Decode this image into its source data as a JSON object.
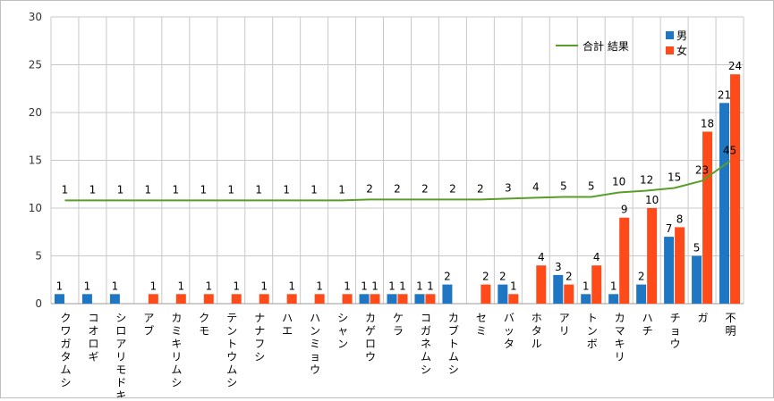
{
  "chart_data": {
    "type": "bar",
    "categories": [
      "クワガタムシ",
      "コオロギ",
      "シロアリモドキ",
      "アブ",
      "カミキリムシ",
      "クモ",
      "テントウムシ",
      "ナナフシ",
      "ハエ",
      "ハンミョウ",
      "シャン",
      "カゲロウ",
      "ケラ",
      "コガネムシ",
      "カブトムシ",
      "セミ",
      "バッタ",
      "ホタル",
      "アリ",
      "トンボ",
      "カマキリ",
      "ハチ",
      "チョウ",
      "ガ",
      "不明"
    ],
    "series": [
      {
        "name": "男",
        "type": "bar",
        "color": "#1f77c4",
        "values": [
          1,
          1,
          1,
          null,
          null,
          null,
          null,
          null,
          null,
          null,
          null,
          1,
          1,
          1,
          2,
          null,
          2,
          null,
          3,
          1,
          1,
          2,
          7,
          5,
          21
        ]
      },
      {
        "name": "女",
        "type": "bar",
        "color": "#ff4a1a",
        "values": [
          null,
          null,
          null,
          1,
          1,
          1,
          1,
          1,
          1,
          1,
          1,
          1,
          1,
          1,
          null,
          2,
          1,
          4,
          2,
          4,
          9,
          10,
          8,
          18,
          24
        ]
      },
      {
        "name": "合計 結果",
        "type": "line",
        "color": "#5a9e2a",
        "values": [
          1,
          1,
          1,
          1,
          1,
          1,
          1,
          1,
          1,
          1,
          1,
          2,
          2,
          2,
          2,
          2,
          3,
          4,
          5,
          5,
          10,
          12,
          15,
          23,
          45
        ]
      }
    ],
    "ylim": [
      0,
      30
    ],
    "yticks": [
      "0",
      "5",
      "10",
      "15",
      "20",
      "25",
      "30"
    ],
    "grid": true,
    "legend_placement": "top-right"
  }
}
